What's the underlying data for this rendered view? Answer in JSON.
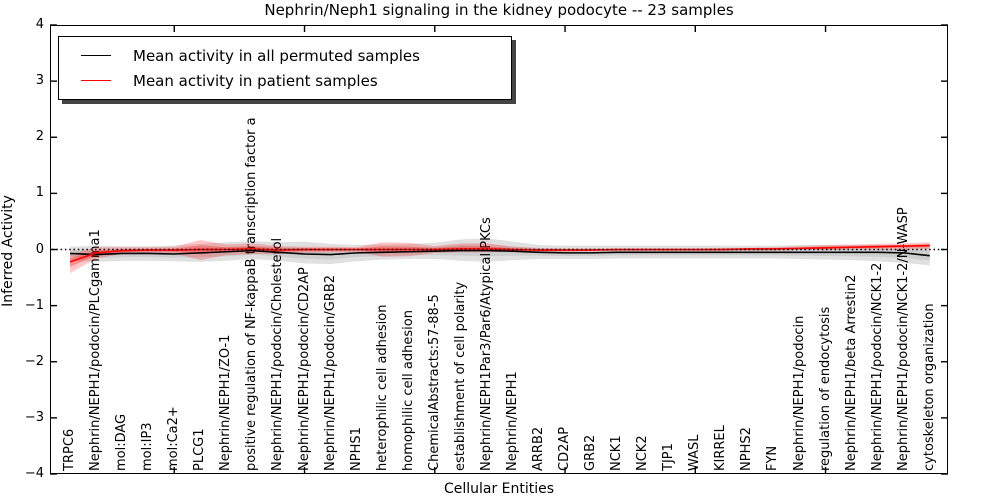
{
  "title": "Nephrin/Neph1 signaling in the kidney podocyte -- 23 samples",
  "legend": {
    "items": [
      {
        "label": "Mean activity in all permuted samples",
        "color": "#000000"
      },
      {
        "label": "Mean activity in patient samples",
        "color": "#ff0000"
      }
    ]
  },
  "colors": {
    "permuted_line": "#000000",
    "patient_line": "#ff0000",
    "permuted_band": "rgba(0,0,0,0.12)",
    "patient_band": "rgba(255,0,0,0.22)",
    "zero_line": "#000000"
  },
  "chart_data": {
    "type": "line",
    "title": "Nephrin/Neph1 signaling in the kidney podocyte -- 23 samples",
    "xlabel": "Cellular Entities",
    "ylabel": "Inferred Activity",
    "ylim": [
      -4,
      4
    ],
    "ytick_labels": [
      "4",
      "3",
      "2",
      "1",
      "0",
      "−1",
      "−2",
      "−3",
      "−4"
    ],
    "ytick_values": [
      4,
      3,
      2,
      1,
      0,
      -1,
      -2,
      -3,
      -4
    ],
    "xtick_marker_positions": [
      5,
      10,
      15,
      20,
      25,
      30
    ],
    "grid": false,
    "zero_line_style": "dotted",
    "legend_position": "upper left",
    "categories": [
      "TRPC6",
      "Nephrin/NEPH1/podocin/PLCgamma1",
      "mol:DAG",
      "mol:IP3",
      "mol:Ca2+",
      "PLCG1",
      "Nephrin/NEPH1/ZO-1",
      "positive regulation of NF-kappaB transcription factor a",
      "Nephrin/NEPH1/podocin/Cholesterol",
      "Nephrin/NEPH1/podocin/CD2AP",
      "Nephrin/NEPH1/podocin/GRB2",
      "NPHS1",
      "heterophilic cell adhesion",
      "homophilic cell adhesion",
      "ChemicalAbstracts:57-88-5",
      "establishment of cell polarity",
      "Nephrin/NEPH1Par3/Par6/Atypical PKCs",
      "Nephrin/NEPH1",
      "ARRB2",
      "CD2AP",
      "GRB2",
      "NCK1",
      "NCK2",
      "TJP1",
      "WASL",
      "KIRREL",
      "NPHS2",
      "FYN",
      "Nephrin/NEPH1/podocin",
      "regulation of endocytosis",
      "Nephrin/NEPH1/beta Arrestin2",
      "Nephrin/NEPH1/podocin/NCK1-2",
      "Nephrin/NEPH1/podocin/NCK1-2/N-WASP",
      "cytoskeleton organization"
    ],
    "series": [
      {
        "name": "Mean activity in all permuted samples",
        "color": "#000000",
        "values": [
          -0.07,
          -0.09,
          -0.07,
          -0.07,
          -0.08,
          -0.06,
          -0.04,
          -0.02,
          -0.05,
          -0.08,
          -0.09,
          -0.06,
          -0.05,
          -0.04,
          -0.03,
          -0.02,
          -0.02,
          -0.03,
          -0.05,
          -0.06,
          -0.06,
          -0.05,
          -0.05,
          -0.05,
          -0.05,
          -0.05,
          -0.05,
          -0.05,
          -0.05,
          -0.05,
          -0.05,
          -0.05,
          -0.06,
          -0.11
        ],
        "band_upper": [
          0.05,
          0.07,
          0.06,
          0.06,
          0.07,
          0.1,
          0.13,
          0.15,
          0.13,
          0.14,
          0.1,
          0.08,
          0.09,
          0.1,
          0.12,
          0.18,
          0.2,
          0.14,
          0.08,
          0.07,
          0.07,
          0.07,
          0.07,
          0.07,
          0.07,
          0.07,
          0.07,
          0.07,
          0.08,
          0.08,
          0.08,
          0.08,
          0.08,
          0.08
        ],
        "band_lower": [
          -0.19,
          -0.22,
          -0.2,
          -0.2,
          -0.21,
          -0.22,
          -0.2,
          -0.17,
          -0.2,
          -0.25,
          -0.26,
          -0.21,
          -0.18,
          -0.17,
          -0.17,
          -0.2,
          -0.22,
          -0.19,
          -0.17,
          -0.17,
          -0.17,
          -0.16,
          -0.16,
          -0.16,
          -0.16,
          -0.16,
          -0.16,
          -0.16,
          -0.17,
          -0.18,
          -0.19,
          -0.21,
          -0.24,
          -0.28
        ]
      },
      {
        "name": "Mean activity in patient samples",
        "color": "#ff0000",
        "values": [
          -0.22,
          -0.06,
          -0.02,
          -0.01,
          -0.01,
          0.0,
          0.0,
          0.01,
          -0.01,
          0.0,
          0.0,
          0.0,
          0.0,
          0.0,
          0.0,
          0.01,
          0.01,
          0.0,
          -0.01,
          -0.01,
          -0.01,
          0.0,
          0.0,
          0.0,
          0.0,
          0.0,
          0.01,
          0.01,
          0.02,
          0.03,
          0.04,
          0.05,
          0.06,
          0.07
        ],
        "band_upper": [
          -0.08,
          0.04,
          0.04,
          0.04,
          0.05,
          0.17,
          0.09,
          0.11,
          0.06,
          0.05,
          0.05,
          0.04,
          0.13,
          0.12,
          0.06,
          0.11,
          0.11,
          0.05,
          0.03,
          0.02,
          0.02,
          0.02,
          0.02,
          0.02,
          0.02,
          0.03,
          0.03,
          0.04,
          0.06,
          0.08,
          0.09,
          0.1,
          0.11,
          0.13
        ],
        "band_lower": [
          -0.42,
          -0.16,
          -0.08,
          -0.06,
          -0.07,
          -0.19,
          -0.1,
          -0.08,
          -0.08,
          -0.06,
          -0.05,
          -0.04,
          -0.13,
          -0.12,
          -0.06,
          -0.05,
          -0.05,
          -0.04,
          -0.04,
          -0.04,
          -0.03,
          -0.03,
          -0.03,
          -0.03,
          -0.03,
          -0.03,
          -0.02,
          -0.02,
          -0.01,
          -0.01,
          0.0,
          0.0,
          0.0,
          0.01
        ]
      }
    ]
  }
}
